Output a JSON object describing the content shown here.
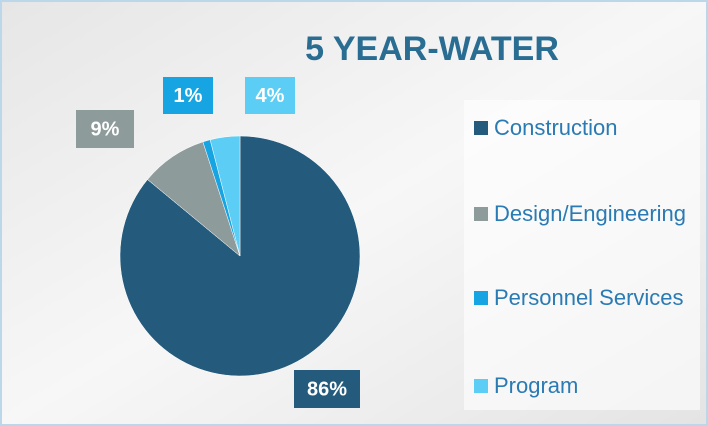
{
  "chart_data": {
    "type": "pie",
    "title": "5 YEAR-WATER",
    "categories": [
      "Construction",
      "Design/Engineering",
      "Personnel Services",
      "Program"
    ],
    "values": [
      86,
      9,
      1,
      4
    ],
    "value_labels": [
      "86%",
      "9%",
      "1%",
      "4%"
    ],
    "colors": [
      "#245a7c",
      "#8e9b9b",
      "#17a4e2",
      "#5ccdf4"
    ],
    "legend": "right"
  }
}
